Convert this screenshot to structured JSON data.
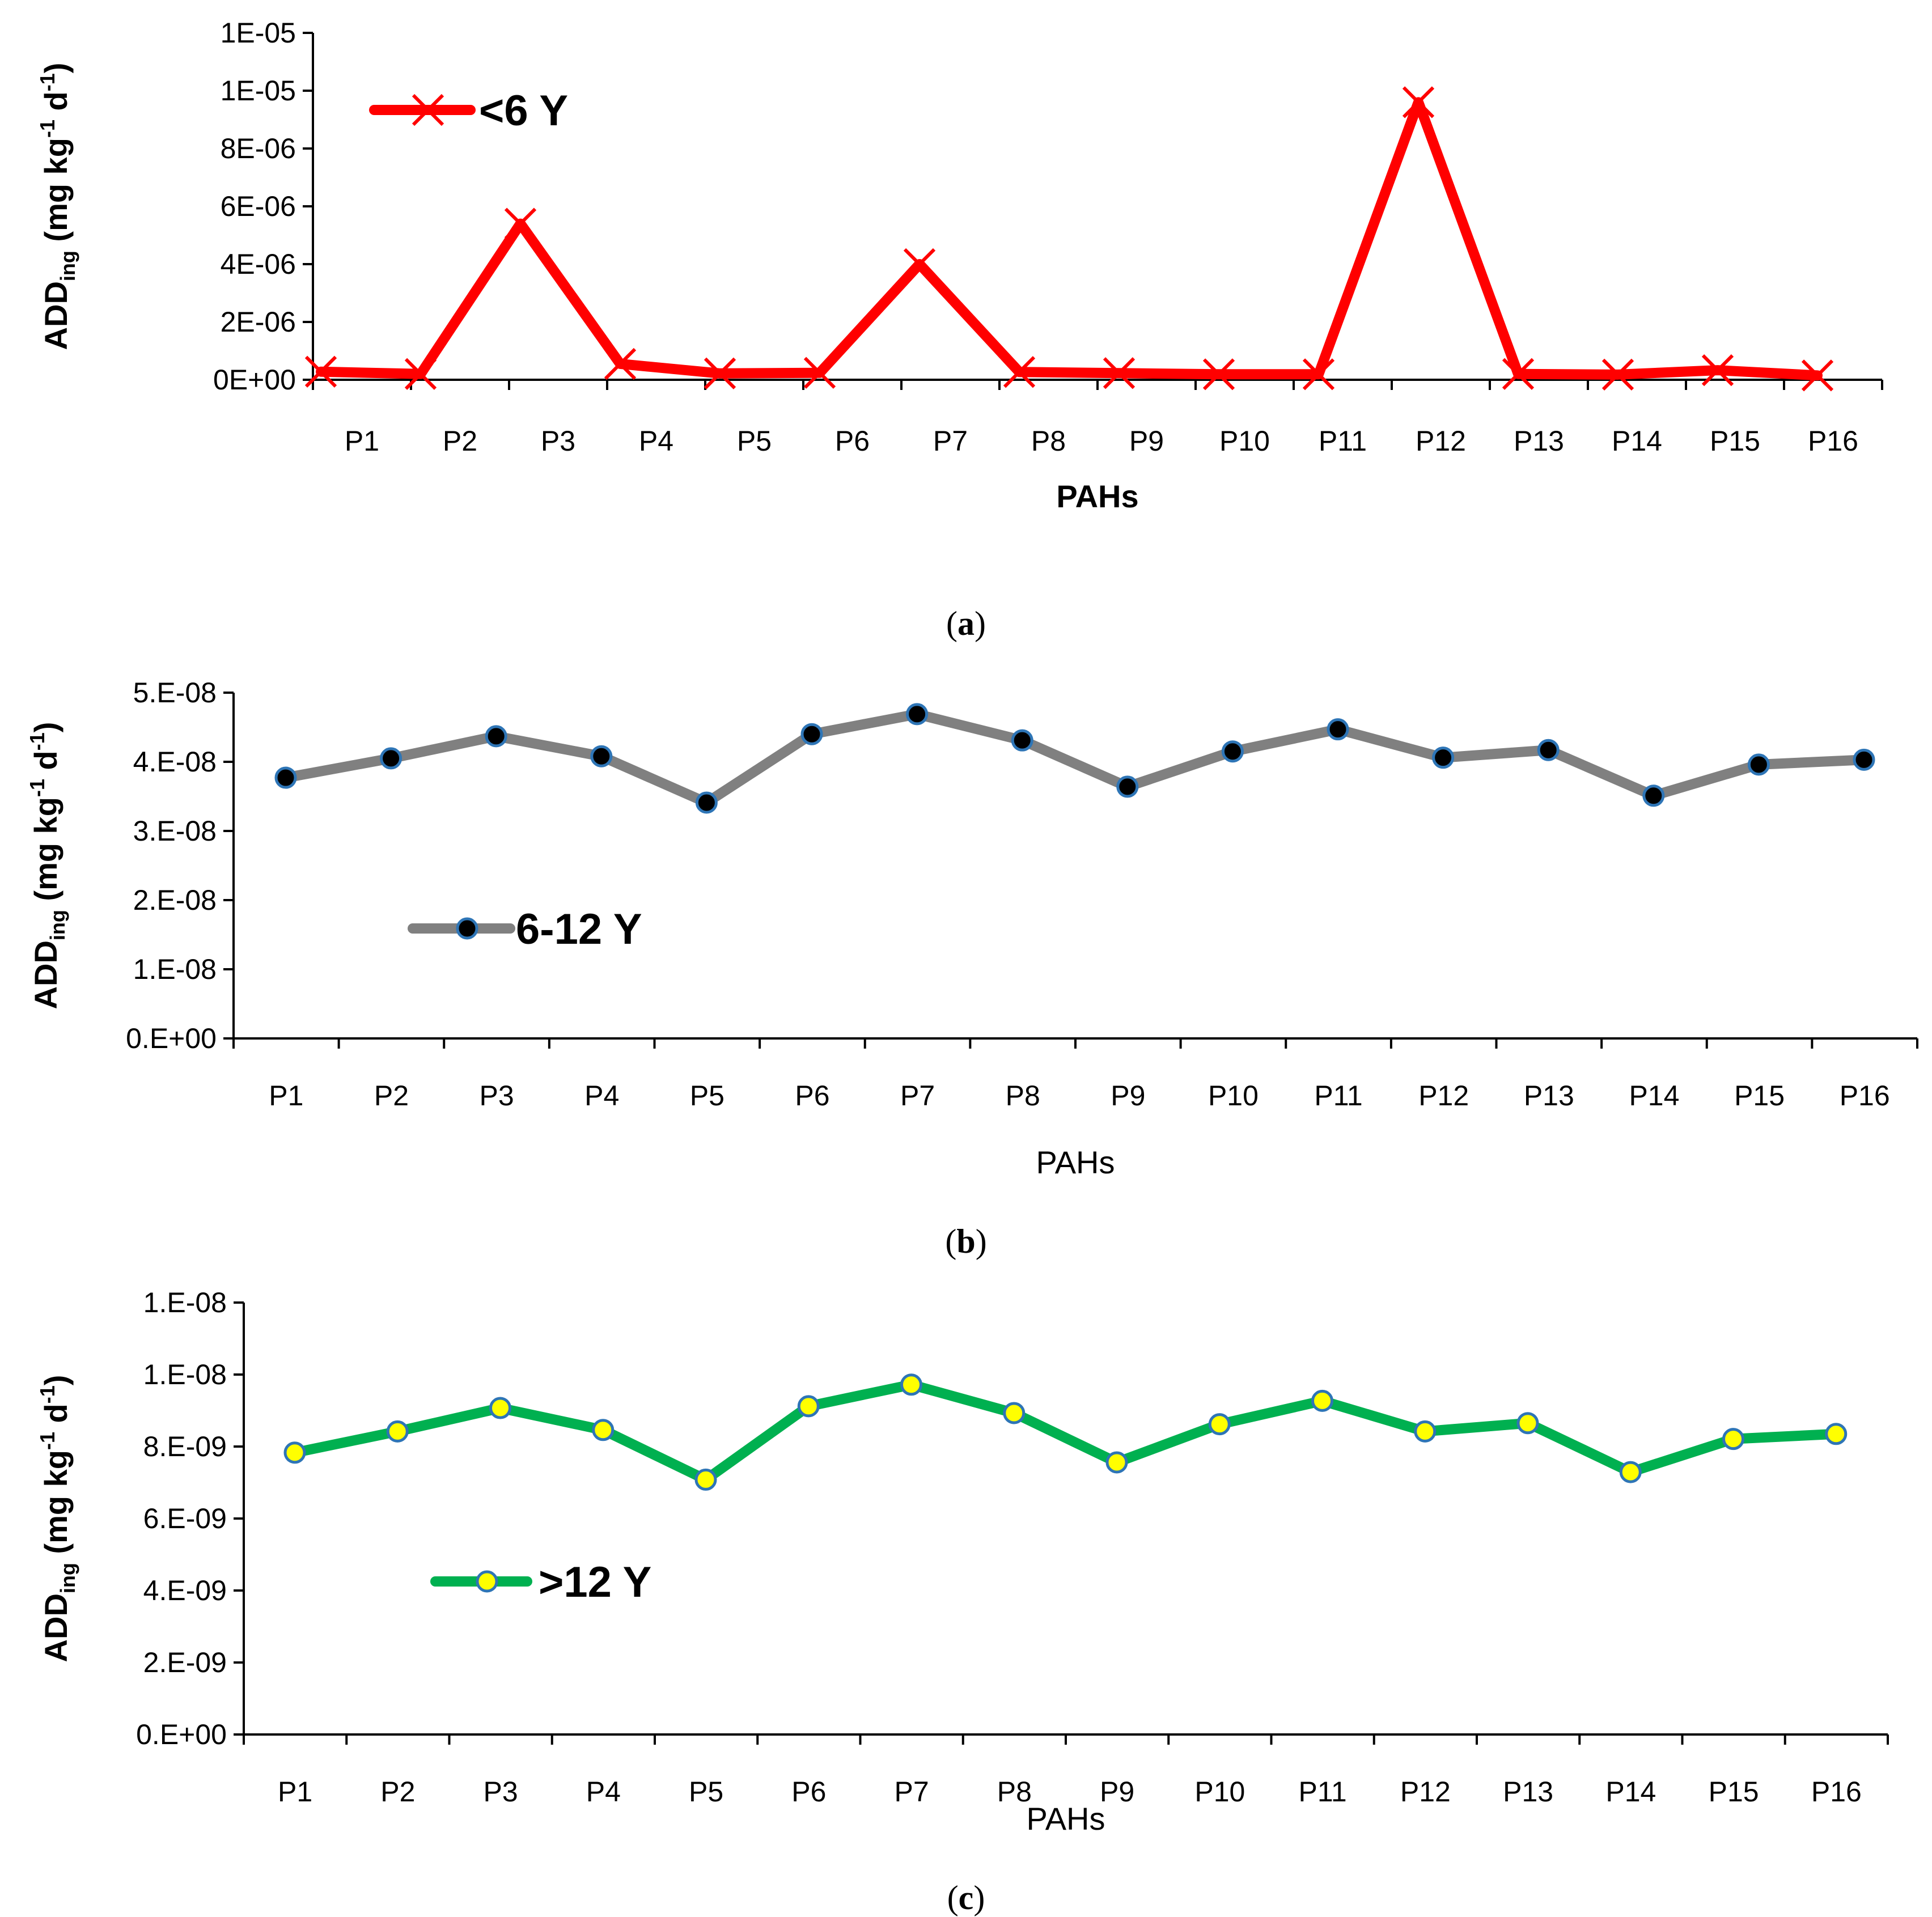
{
  "chart_data": [
    {
      "type": "line",
      "panel": "a",
      "caption": "(a)",
      "caption_letter": "a",
      "categories": [
        "P1",
        "P2",
        "P3",
        "P4",
        "P5",
        "P6",
        "P7",
        "P8",
        "P9",
        "P10",
        "P11",
        "P12",
        "P13",
        "P14",
        "P15",
        "P16"
      ],
      "series": [
        {
          "name": "<6 Y",
          "values": [
            2.8e-07,
            2e-07,
            5.4e-06,
            5.5e-07,
            2.2e-07,
            2.4e-07,
            4e-06,
            2.7e-07,
            2.3e-07,
            1.9e-07,
            1.9e-07,
            9.6e-06,
            2e-07,
            1.8e-07,
            3.3e-07,
            1.5e-07
          ]
        }
      ],
      "ylim": [
        0,
        1.2e-05
      ],
      "yticks": [
        "0E+00",
        "2E-06",
        "4E-06",
        "6E-06",
        "8E-06",
        "1E-05",
        "1E-05"
      ],
      "xlabel": "PAHs",
      "ylabel_main": "ADD",
      "ylabel_sub": "ing",
      "ylabel_units_a": " (mg kg",
      "ylabel_exp1": "-1",
      "ylabel_units_b": " d",
      "ylabel_exp2": "-1",
      "ylabel_close": ")",
      "legend_position": "top-left",
      "line_color": "#ff0000",
      "marker": "x",
      "marker_color": "#ff0000"
    },
    {
      "type": "line",
      "panel": "b",
      "caption": "(b)",
      "caption_letter": "b",
      "categories": [
        "P1",
        "P2",
        "P3",
        "P4",
        "P5",
        "P6",
        "P7",
        "P8",
        "P9",
        "P10",
        "P11",
        "P12",
        "P13",
        "P14",
        "P15",
        "P16"
      ],
      "series": [
        {
          "name": "6-12 Y",
          "values": [
            3.77e-08,
            4.05e-08,
            4.37e-08,
            4.08e-08,
            3.41e-08,
            4.4e-08,
            4.69e-08,
            4.31e-08,
            3.64e-08,
            4.15e-08,
            4.47e-08,
            4.06e-08,
            4.17e-08,
            3.51e-08,
            3.96e-08,
            4.03e-08
          ]
        }
      ],
      "ylim": [
        0,
        5e-08
      ],
      "yticks": [
        "0.E+00",
        "1.E-08",
        "2.E-08",
        "3.E-08",
        "4.E-08",
        "5.E-08"
      ],
      "xlabel": "PAHs",
      "ylabel_main": "ADD",
      "ylabel_sub": "ing",
      "ylabel_units_a": " (mg kg",
      "ylabel_exp1": "-1",
      "ylabel_units_b": " d",
      "ylabel_exp2": "-1",
      "ylabel_close": ")",
      "legend_position": "bottom-left",
      "line_color": "#808080",
      "marker": "circle",
      "marker_fill": "#000000",
      "marker_stroke": "#2e75b6"
    },
    {
      "type": "line",
      "panel": "c",
      "caption": "(c)",
      "caption_letter": "c",
      "categories": [
        "P1",
        "P2",
        "P3",
        "P4",
        "P5",
        "P6",
        "P7",
        "P8",
        "P9",
        "P10",
        "P11",
        "P12",
        "P13",
        "P14",
        "P15",
        "P16"
      ],
      "series": [
        {
          "name": ">12 Y",
          "values": [
            7.83e-09,
            8.42e-09,
            9.07e-09,
            8.46e-09,
            7.08e-09,
            9.12e-09,
            9.72e-09,
            8.93e-09,
            7.56e-09,
            8.62e-09,
            9.27e-09,
            8.42e-09,
            8.65e-09,
            7.29e-09,
            8.21e-09,
            8.35e-09
          ]
        }
      ],
      "ylim": [
        0,
        1.2e-08
      ],
      "yticks": [
        "0.E+00",
        "2.E-09",
        "4.E-09",
        "6.E-09",
        "8.E-09",
        "1.E-08",
        "1.E-08"
      ],
      "xlabel": "PAHs",
      "ylabel_main": "ADD",
      "ylabel_sub": "ing",
      "ylabel_units_a": " (mg kg",
      "ylabel_exp1": "-1",
      "ylabel_units_b": " d",
      "ylabel_exp2": "-1",
      "ylabel_close": ")",
      "legend_position": "bottom-left",
      "line_color": "#00b050",
      "marker": "circle",
      "marker_fill": "#ffff00",
      "marker_stroke": "#2e75b6"
    }
  ]
}
